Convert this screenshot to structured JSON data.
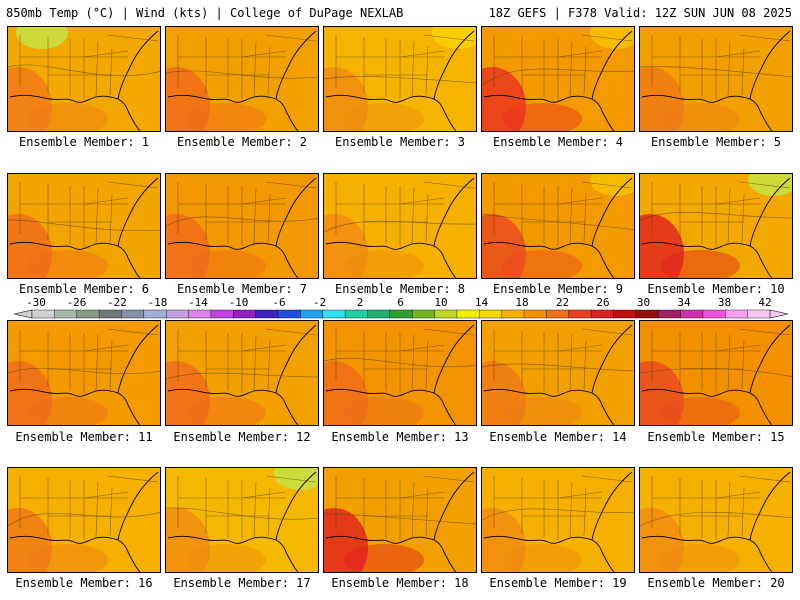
{
  "header": {
    "left": "850mb Temp (°C) | Wind (kts) | College of DuPage NEXLAB",
    "right": "18Z GEFS | F378 Valid: 12Z SUN JUN 08 2025"
  },
  "member_label": "Ensemble Member:",
  "members": [
    {
      "id": 1,
      "caption": "Ensemble Member: 1",
      "base": "#f2a800",
      "hot": "#f07818",
      "cool": "#c8e040",
      "cool_spot": "nw"
    },
    {
      "id": 2,
      "caption": "Ensemble Member: 2",
      "base": "#f2a000",
      "hot": "#f06a1c",
      "cool": "#f5c800",
      "cool_spot": "none"
    },
    {
      "id": 3,
      "caption": "Ensemble Member: 3",
      "base": "#f5b400",
      "hot": "#f08a10",
      "cool": "#f8d000",
      "cool_spot": "ne"
    },
    {
      "id": 4,
      "caption": "Ensemble Member: 4",
      "base": "#f29a00",
      "hot": "#e83020",
      "cool": "#f5c000",
      "cool_spot": "ne"
    },
    {
      "id": 5,
      "caption": "Ensemble Member: 5",
      "base": "#f2a000",
      "hot": "#f07818",
      "cool": "#f5c000",
      "cool_spot": "none"
    },
    {
      "id": 6,
      "caption": "Ensemble Member: 6",
      "base": "#f2a400",
      "hot": "#f06a1c",
      "cool": "#f5c800",
      "cool_spot": "none"
    },
    {
      "id": 7,
      "caption": "Ensemble Member: 7",
      "base": "#f29800",
      "hot": "#f06a1c",
      "cool": "#f5c000",
      "cool_spot": "none"
    },
    {
      "id": 8,
      "caption": "Ensemble Member: 8",
      "base": "#f5b000",
      "hot": "#f08a10",
      "cool": "#f8d000",
      "cool_spot": "none"
    },
    {
      "id": 9,
      "caption": "Ensemble Member: 9",
      "base": "#f29a00",
      "hot": "#e84820",
      "cool": "#f5c000",
      "cool_spot": "ne"
    },
    {
      "id": 10,
      "caption": "Ensemble Member: 10",
      "base": "#f2a800",
      "hot": "#e02020",
      "cool": "#c8e040",
      "cool_spot": "ne"
    },
    {
      "id": 11,
      "caption": "Ensemble Member: 11",
      "base": "#f29a00",
      "hot": "#f06a1c",
      "cool": "#f5c000",
      "cool_spot": "none"
    },
    {
      "id": 12,
      "caption": "Ensemble Member: 12",
      "base": "#f2a000",
      "hot": "#f06a1c",
      "cool": "#f5c800",
      "cool_spot": "none"
    },
    {
      "id": 13,
      "caption": "Ensemble Member: 13",
      "base": "#f29400",
      "hot": "#f06a1c",
      "cool": "#f5c000",
      "cool_spot": "none"
    },
    {
      "id": 14,
      "caption": "Ensemble Member: 14",
      "base": "#f2a000",
      "hot": "#f07818",
      "cool": "#f5c000",
      "cool_spot": "none"
    },
    {
      "id": 15,
      "caption": "Ensemble Member: 15",
      "base": "#f29000",
      "hot": "#e84820",
      "cool": "#f5c000",
      "cool_spot": "none"
    },
    {
      "id": 16,
      "caption": "Ensemble Member: 16",
      "base": "#f5b000",
      "hot": "#f07818",
      "cool": "#f8d000",
      "cool_spot": "none"
    },
    {
      "id": 17,
      "caption": "Ensemble Member: 17",
      "base": "#f5b800",
      "hot": "#f08a10",
      "cool": "#c8e040",
      "cool_spot": "ne"
    },
    {
      "id": 18,
      "caption": "Ensemble Member: 18",
      "base": "#f2a000",
      "hot": "#e02020",
      "cool": "#f5c000",
      "cool_spot": "none"
    },
    {
      "id": 19,
      "caption": "Ensemble Member: 19",
      "base": "#f5b000",
      "hot": "#f08a10",
      "cool": "#f8d000",
      "cool_spot": "none"
    },
    {
      "id": 20,
      "caption": "Ensemble Member: 20",
      "base": "#f5b000",
      "hot": "#f08a10",
      "cool": "#f8d000",
      "cool_spot": "none"
    }
  ],
  "colorbar": {
    "labels": [
      "-30",
      "-26",
      "-22",
      "-18",
      "-14",
      "-10",
      "-6",
      "-2",
      "2",
      "6",
      "10",
      "14",
      "18",
      "22",
      "26",
      "30",
      "34",
      "38",
      "42"
    ],
    "colors": [
      "#d0d0d0",
      "#a8b8a8",
      "#889888",
      "#707878",
      "#8890a8",
      "#a0b0d8",
      "#c0a0e0",
      "#e080f0",
      "#c040e0",
      "#9020c0",
      "#4020c0",
      "#2050e0",
      "#20a0f0",
      "#30e0f0",
      "#20d0a0",
      "#20b070",
      "#30a030",
      "#70b820",
      "#c0d820",
      "#f0f000",
      "#f8d800",
      "#f8b000",
      "#f49000",
      "#f07018",
      "#e84020",
      "#e02020",
      "#c01010",
      "#901010",
      "#a02060",
      "#d030b0",
      "#f050e0",
      "#f8a0f0",
      "#f8c8f0"
    ]
  }
}
